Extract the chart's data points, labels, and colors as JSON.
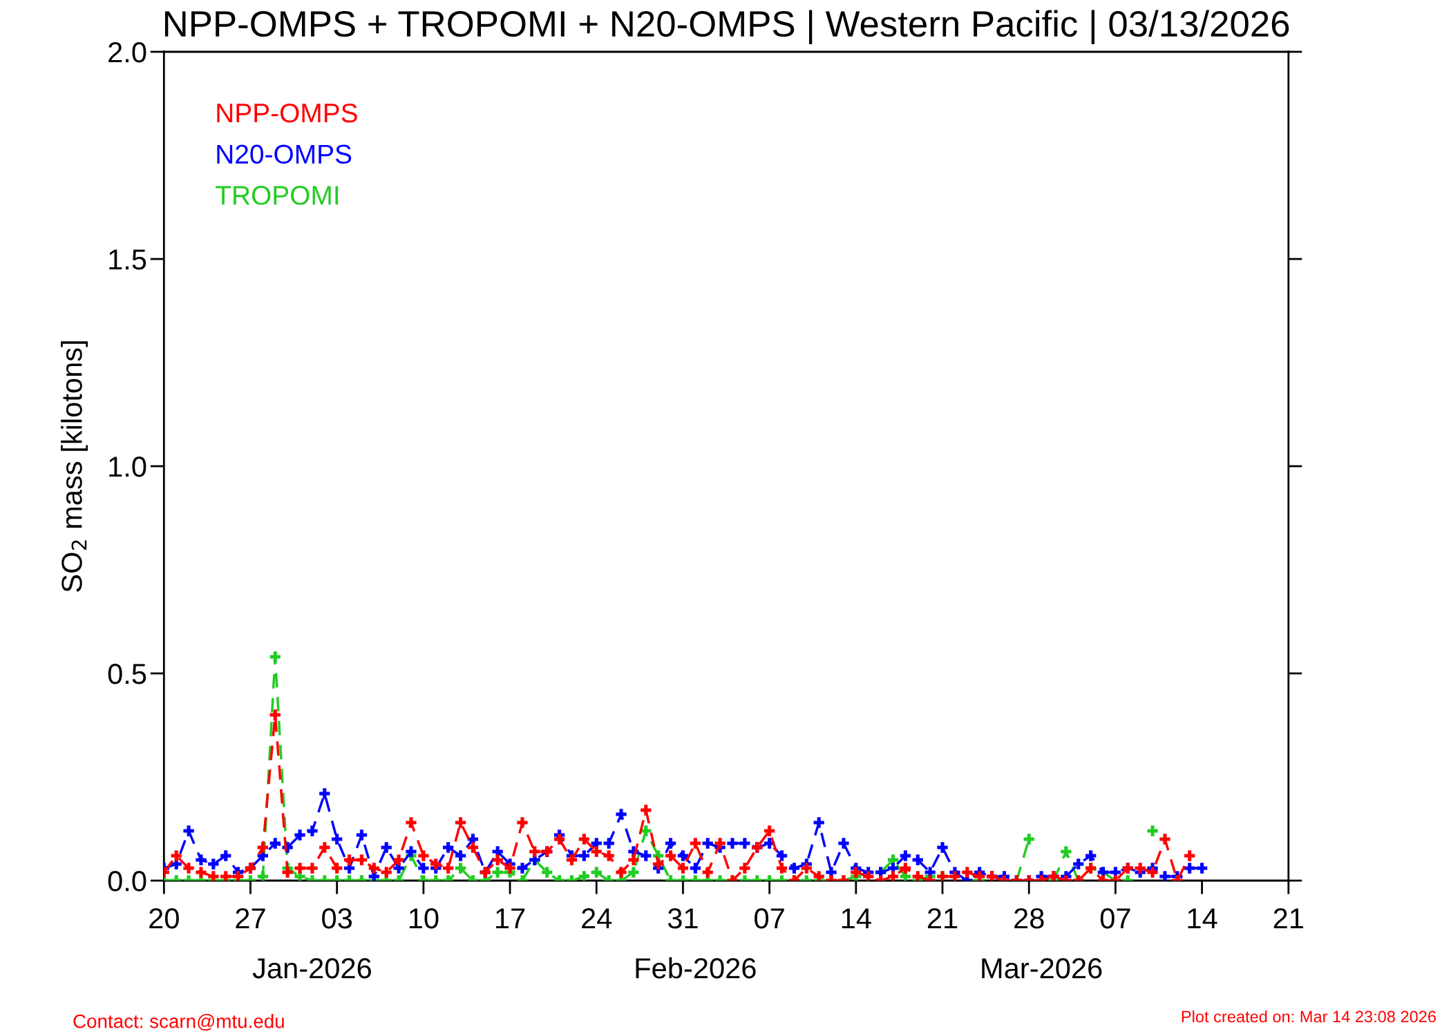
{
  "chart_data": {
    "type": "line",
    "title": "NPP-OMPS + TROPOMI + N20-OMPS | Western Pacific | 03/13/2026",
    "ylabel": "SO$_{2}$ mass [kilotons]",
    "x": [
      "2025-12-20",
      "2025-12-21",
      "2025-12-22",
      "2025-12-23",
      "2025-12-24",
      "2025-12-25",
      "2025-12-26",
      "2025-12-27",
      "2025-12-28",
      "2025-12-29",
      "2025-12-30",
      "2025-12-31",
      "2026-01-01",
      "2026-01-02",
      "2026-01-03",
      "2026-01-04",
      "2026-01-05",
      "2026-01-06",
      "2026-01-07",
      "2026-01-08",
      "2026-01-09",
      "2026-01-10",
      "2026-01-11",
      "2026-01-12",
      "2026-01-13",
      "2026-01-14",
      "2026-01-15",
      "2026-01-16",
      "2026-01-17",
      "2026-01-18",
      "2026-01-19",
      "2026-01-20",
      "2026-01-21",
      "2026-01-22",
      "2026-01-23",
      "2026-01-24",
      "2026-01-25",
      "2026-01-26",
      "2026-01-27",
      "2026-01-28",
      "2026-01-29",
      "2026-01-30",
      "2026-01-31",
      "2026-02-01",
      "2026-02-02",
      "2026-02-03",
      "2026-02-04",
      "2026-02-05",
      "2026-02-06",
      "2026-02-07",
      "2026-02-08",
      "2026-02-09",
      "2026-02-10",
      "2026-02-11",
      "2026-02-12",
      "2026-02-13",
      "2026-02-14",
      "2026-02-15",
      "2026-02-16",
      "2026-02-17",
      "2026-02-18",
      "2026-02-19",
      "2026-02-20",
      "2026-02-21",
      "2026-02-22",
      "2026-02-23",
      "2026-02-24",
      "2026-02-25",
      "2026-02-26",
      "2026-02-27",
      "2026-02-28",
      "2026-03-01",
      "2026-03-02",
      "2026-03-03",
      "2026-03-04",
      "2026-03-05",
      "2026-03-06",
      "2026-03-07",
      "2026-03-08",
      "2026-03-09",
      "2026-03-10",
      "2026-03-11",
      "2026-03-12",
      "2026-03-13",
      "2026-03-14"
    ],
    "series": [
      {
        "name": "NPP-OMPS",
        "color": "#ff0000",
        "values": [
          0.02,
          0.06,
          0.03,
          0.02,
          0.01,
          0.01,
          0.01,
          0.03,
          0.08,
          0.4,
          0.02,
          0.03,
          0.03,
          0.08,
          0.03,
          0.05,
          0.05,
          0.03,
          0.02,
          0.05,
          0.14,
          0.06,
          0.04,
          0.03,
          0.14,
          0.08,
          0.02,
          0.05,
          0.03,
          0.14,
          0.07,
          0.07,
          0.1,
          0.05,
          0.1,
          0.07,
          0.06,
          0.02,
          0.05,
          0.17,
          0.04,
          0.06,
          0.03,
          0.09,
          0.02,
          0.09,
          0.0,
          0.03,
          0.08,
          0.12,
          0.03,
          0.0,
          0.03,
          0.01,
          0.0,
          0.0,
          0.02,
          0.01,
          0.0,
          0.01,
          0.03,
          0.01,
          0.0,
          0.01,
          0.01,
          0.02,
          0.01,
          0.01,
          0.0,
          0.0,
          0.0,
          0.0,
          0.01,
          0.0,
          0.0,
          0.03,
          0.0,
          0.0,
          0.03,
          0.03,
          0.02,
          0.1,
          0.0,
          0.06,
          null
        ]
      },
      {
        "name": "N20-OMPS",
        "color": "#0000ff",
        "values": [
          0.03,
          0.04,
          0.12,
          0.05,
          0.04,
          0.06,
          0.02,
          0.03,
          0.06,
          0.09,
          0.08,
          0.11,
          0.12,
          0.21,
          0.1,
          0.03,
          0.11,
          0.01,
          0.08,
          0.03,
          0.07,
          0.03,
          0.03,
          0.08,
          0.06,
          0.1,
          0.02,
          0.07,
          0.04,
          0.03,
          0.05,
          0.07,
          0.11,
          0.06,
          0.06,
          0.09,
          0.09,
          0.16,
          0.07,
          0.06,
          0.03,
          0.09,
          0.06,
          0.03,
          0.09,
          0.08,
          0.09,
          0.09,
          0.08,
          0.09,
          0.06,
          0.03,
          0.04,
          0.14,
          0.02,
          0.09,
          0.03,
          0.02,
          0.02,
          0.03,
          0.06,
          0.05,
          0.02,
          0.08,
          0.02,
          0.0,
          0.02,
          0.01,
          0.01,
          0.0,
          0.0,
          0.01,
          0.01,
          0.01,
          0.04,
          0.06,
          0.02,
          0.02,
          0.03,
          0.02,
          0.03,
          0.01,
          0.01,
          0.03,
          0.03
        ]
      },
      {
        "name": "TROPOMI",
        "color": "#22cc22",
        "values": [
          0,
          0,
          0,
          0,
          0,
          0,
          0,
          0,
          0.01,
          0.54,
          0.03,
          0.01,
          0,
          0,
          0,
          0,
          0,
          0,
          0,
          0,
          0.06,
          0,
          0,
          0,
          0.03,
          0,
          0,
          0.02,
          0.02,
          0,
          0.05,
          0.02,
          0,
          0,
          0.01,
          0.02,
          0,
          0,
          0.02,
          0.12,
          0.06,
          0,
          0,
          0,
          0,
          0,
          0,
          0,
          0,
          0,
          0,
          0,
          0,
          0,
          0,
          0,
          0.01,
          null,
          0.02,
          0.05,
          0.01,
          0,
          0.01,
          0.01,
          null,
          0,
          0,
          0.01,
          null,
          0,
          0.1,
          null,
          0,
          0.07,
          0,
          0.03,
          0.02,
          0,
          0,
          null,
          0.12,
          null,
          null,
          null,
          null
        ]
      }
    ],
    "xlim": [
      "2025-12-20",
      "2026-03-21"
    ],
    "xticks": [
      {
        "value": "2025-12-20",
        "label": "20"
      },
      {
        "value": "2025-12-27",
        "label": "27"
      },
      {
        "value": "2026-01-03",
        "label": "03"
      },
      {
        "value": "2026-01-10",
        "label": "10"
      },
      {
        "value": "2026-01-17",
        "label": "17"
      },
      {
        "value": "2026-01-24",
        "label": "24"
      },
      {
        "value": "2026-01-31",
        "label": "31"
      },
      {
        "value": "2026-02-07",
        "label": "07"
      },
      {
        "value": "2026-02-14",
        "label": "14"
      },
      {
        "value": "2026-02-21",
        "label": "21"
      },
      {
        "value": "2026-02-28",
        "label": "28"
      },
      {
        "value": "2026-03-07",
        "label": "07"
      },
      {
        "value": "2026-03-14",
        "label": "14"
      },
      {
        "value": "2026-03-21",
        "label": "21"
      }
    ],
    "x2lim": [
      "2025-12-20",
      "2026-03-21"
    ],
    "x2ticks": [
      {
        "value": "2026-01-01",
        "label": "Jan-2026"
      },
      {
        "value": "2026-02-01",
        "label": "Feb-2026"
      },
      {
        "value": "2026-03-01",
        "label": "Mar-2026"
      }
    ],
    "ylim": [
      0,
      2.0
    ],
    "yticks": [
      {
        "value": 0,
        "label": "0.0"
      },
      0.5,
      {
        "value": 1.0,
        "label": "1.0"
      },
      1.5,
      {
        "value": 2.0,
        "label": "2.0"
      }
    ],
    "marker": "cross",
    "line_style": "dashed",
    "legend": "top left",
    "annotations": [
      "Contact: scarn@mtu.edu",
      "Plot created on: Mar 14 23:08 2026"
    ]
  }
}
